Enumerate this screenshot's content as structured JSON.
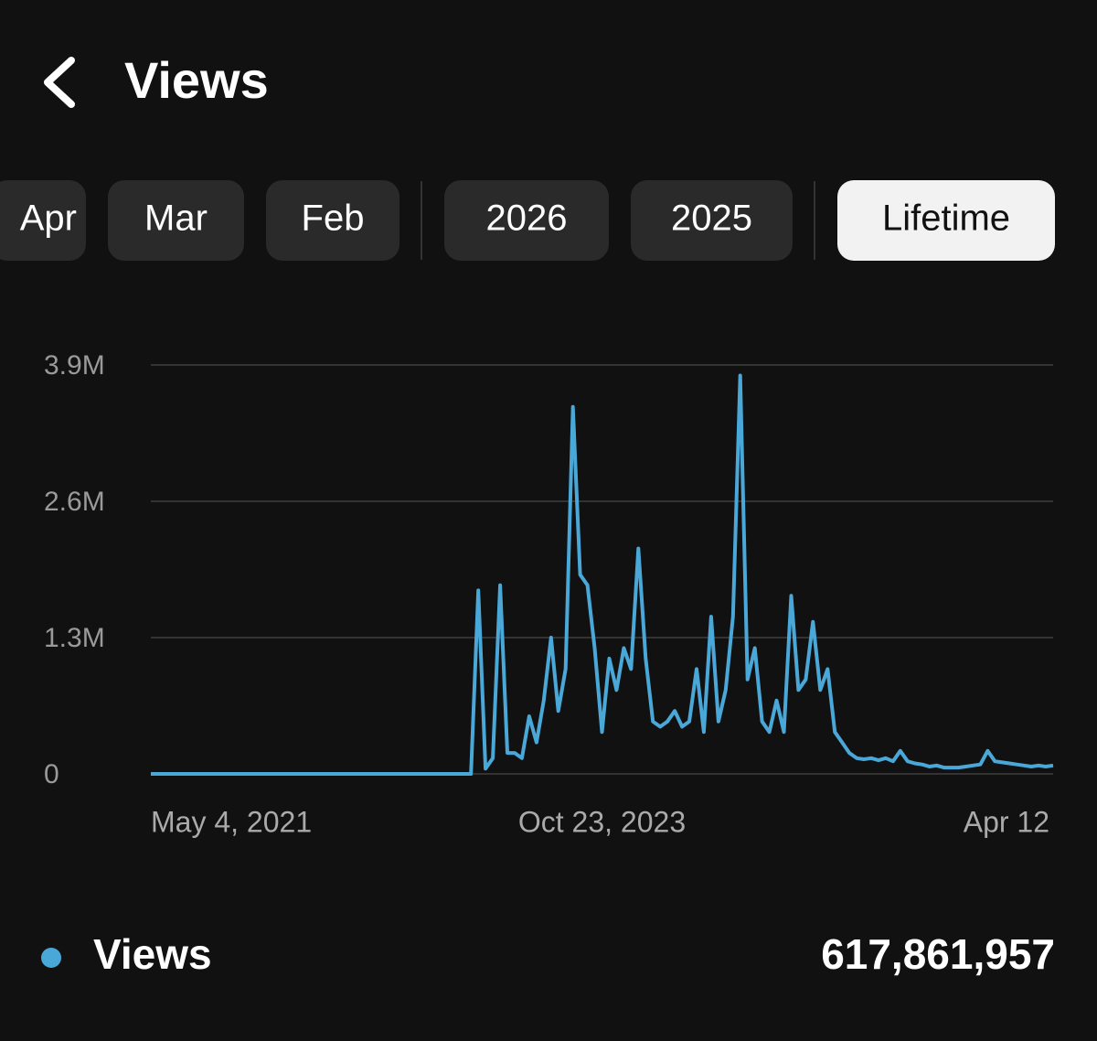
{
  "header": {
    "title": "Views"
  },
  "tabs": [
    {
      "label": "Apr",
      "selected": false
    },
    {
      "label": "Mar",
      "selected": false
    },
    {
      "label": "Feb",
      "selected": false
    },
    {
      "label": "2026",
      "selected": false
    },
    {
      "label": "2025",
      "selected": false
    },
    {
      "label": "Lifetime",
      "selected": true
    }
  ],
  "chart_data": {
    "type": "line",
    "categories": [
      "May 4, 2021",
      null,
      null,
      null,
      null,
      null,
      null,
      null,
      null,
      null,
      null,
      null,
      null,
      null,
      null,
      null,
      null,
      null,
      null,
      null,
      null,
      null,
      null,
      null,
      null,
      null,
      null,
      null,
      null,
      null,
      null,
      null,
      null,
      null,
      null,
      null,
      null,
      null,
      null,
      null,
      null,
      null,
      null,
      null,
      null,
      null,
      null,
      null,
      null,
      null,
      null,
      null,
      null,
      null,
      null,
      null,
      null,
      null,
      null,
      null,
      null,
      null,
      "Oct 23, 2023",
      null,
      null,
      null,
      null,
      null,
      null,
      null,
      null,
      null,
      null,
      null,
      null,
      null,
      null,
      null,
      null,
      null,
      null,
      null,
      null,
      null,
      null,
      null,
      null,
      null,
      null,
      null,
      null,
      null,
      null,
      null,
      null,
      null,
      null,
      null,
      null,
      null,
      null,
      null,
      null,
      null,
      null,
      null,
      null,
      null,
      null,
      null,
      null,
      null,
      null,
      null,
      null,
      null,
      null,
      null,
      null,
      null,
      null,
      null,
      null,
      null,
      "Apr 12"
    ],
    "series": [
      {
        "name": "Views",
        "color": "#4aa8d8",
        "values": [
          0,
          0,
          0,
          0,
          0,
          0,
          0,
          0,
          0,
          0,
          0,
          0,
          0,
          0,
          0,
          0,
          0,
          0,
          0,
          0,
          0,
          0,
          0,
          0,
          0,
          0,
          0,
          0,
          0,
          0,
          0,
          0,
          0,
          0,
          0,
          0,
          0,
          0,
          0,
          0,
          0,
          0,
          0,
          0,
          0,
          1750000,
          50000,
          150000,
          1800000,
          200000,
          200000,
          150000,
          550000,
          300000,
          700000,
          1300000,
          600000,
          1000000,
          3500000,
          1900000,
          1800000,
          1200000,
          400000,
          1100000,
          800000,
          1200000,
          1000000,
          2150000,
          1100000,
          500000,
          450000,
          500000,
          600000,
          450000,
          500000,
          1000000,
          400000,
          1500000,
          500000,
          800000,
          1500000,
          3800000,
          900000,
          1200000,
          500000,
          400000,
          700000,
          400000,
          1700000,
          800000,
          900000,
          1450000,
          800000,
          1000000,
          400000,
          300000,
          200000,
          150000,
          140000,
          150000,
          130000,
          150000,
          120000,
          220000,
          120000,
          100000,
          90000,
          70000,
          80000,
          60000,
          60000,
          60000,
          70000,
          80000,
          90000,
          220000,
          120000,
          110000,
          100000,
          90000,
          80000,
          70000,
          80000,
          70000,
          80000
        ]
      }
    ],
    "ylim": [
      0,
      3900000
    ],
    "yticks": [
      0,
      {
        "value": 1300000,
        "label": "1.3M"
      },
      {
        "value": 2600000,
        "label": "2.6M"
      },
      {
        "value": 3900000,
        "label": "3.9M"
      }
    ],
    "grid": true
  },
  "summary": {
    "total": "617,861,957"
  }
}
